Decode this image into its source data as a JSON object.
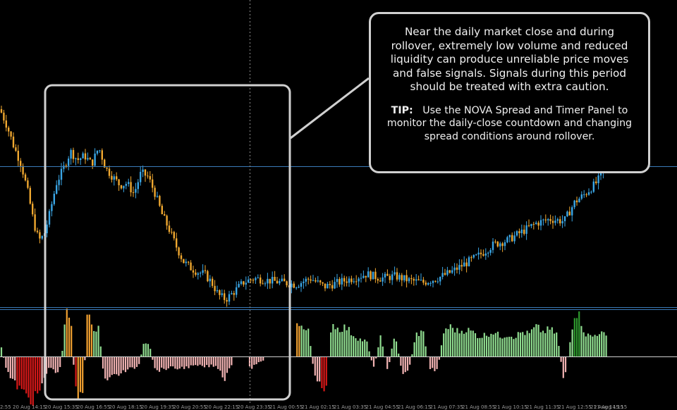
{
  "callout": {
    "text": "Near the daily market close and during rollover, extremely low volume and reduced liquidity can produce unreliable price moves and false signals. Signals during this period should be treated with extra caution.",
    "tip_label": "TIP:",
    "tip_text": "Use the NOVA Spread and Timer Panel to monitor the daily-close countdown and changing spread conditions around rollover."
  },
  "colors": {
    "background": "#000000",
    "candle_up": "#3aa6e6",
    "candle_down": "#f0a830",
    "hist_pos": "#8fdc8f",
    "hist_pos_strong": "#2e9a2e",
    "hist_neg": "#f2b3b3",
    "hist_neg_strong": "#d81818",
    "hist_orange": "#f0a030",
    "guide_line": "#3a7ab8",
    "highlight_box": "#d0d0d0"
  },
  "chart_data": [
    {
      "type": "candlestick",
      "title": "",
      "x_tick_labels": [
        "2:55",
        "20 Aug 14:15",
        "20 Aug 15:35",
        "20 Aug 16:55",
        "20 Aug 18:15",
        "20 Aug 19:35",
        "20 Aug 20:55",
        "20 Aug 22:15",
        "20 Aug 23:35",
        "21 Aug 00:55",
        "21 Aug 02:15",
        "21 Aug 03:35",
        "21 Aug 04:55",
        "21 Aug 06:15",
        "21 Aug 07:35",
        "21 Aug 08:55",
        "21 Aug 10:15",
        "21 Aug 11:35",
        "21 Aug 12:55",
        "21 Aug 14:15",
        "21 Aug 15:15"
      ],
      "y_range": [
        0,
        100
      ],
      "series_shape": [
        [
          0,
          90
        ],
        [
          10,
          82
        ],
        [
          20,
          72
        ],
        [
          30,
          64
        ],
        [
          40,
          50
        ],
        [
          48,
          36
        ],
        [
          55,
          28
        ],
        [
          62,
          30
        ],
        [
          70,
          40
        ],
        [
          80,
          55
        ],
        [
          90,
          62
        ],
        [
          100,
          70
        ],
        [
          110,
          66
        ],
        [
          120,
          68
        ],
        [
          130,
          64
        ],
        [
          140,
          72
        ],
        [
          150,
          62
        ],
        [
          160,
          58
        ],
        [
          170,
          54
        ],
        [
          180,
          55
        ],
        [
          190,
          50
        ],
        [
          200,
          60
        ],
        [
          210,
          58
        ],
        [
          220,
          50
        ],
        [
          230,
          40
        ],
        [
          240,
          33
        ],
        [
          250,
          25
        ],
        [
          260,
          18
        ],
        [
          270,
          15
        ],
        [
          280,
          13
        ],
        [
          290,
          12
        ],
        [
          300,
          8
        ],
        [
          310,
          2
        ],
        [
          320,
          0
        ],
        [
          330,
          3
        ],
        [
          345,
          8
        ],
        [
          360,
          10
        ],
        [
          380,
          9
        ],
        [
          400,
          8
        ],
        [
          420,
          7
        ],
        [
          440,
          10
        ],
        [
          460,
          6
        ],
        [
          480,
          8
        ],
        [
          500,
          10
        ],
        [
          520,
          12
        ],
        [
          540,
          10
        ],
        [
          560,
          11
        ],
        [
          580,
          9
        ],
        [
          600,
          8
        ],
        [
          620,
          10
        ],
        [
          640,
          13
        ],
        [
          660,
          17
        ],
        [
          680,
          21
        ],
        [
          700,
          26
        ],
        [
          720,
          28
        ],
        [
          740,
          32
        ],
        [
          760,
          36
        ],
        [
          780,
          38
        ],
        [
          800,
          37
        ],
        [
          815,
          46
        ],
        [
          830,
          50
        ],
        [
          845,
          55
        ],
        [
          860,
          62
        ]
      ]
    },
    {
      "type": "bar",
      "title": "",
      "y_range": [
        -1,
        1
      ],
      "series_shape": [
        [
          0,
          0.3
        ],
        [
          8,
          -0.2
        ],
        [
          14,
          -0.45
        ],
        [
          22,
          -0.6
        ],
        [
          30,
          -0.72
        ],
        [
          38,
          -0.85
        ],
        [
          46,
          -0.95
        ],
        [
          54,
          -0.8
        ],
        [
          62,
          -0.55
        ],
        [
          70,
          -0.2
        ],
        [
          78,
          -0.35
        ],
        [
          86,
          -0.25
        ],
        [
          94,
          0.95
        ],
        [
          100,
          0.9
        ],
        [
          106,
          -0.6
        ],
        [
          112,
          -0.95
        ],
        [
          118,
          -0.7
        ],
        [
          124,
          0.85
        ],
        [
          132,
          0.6
        ],
        [
          140,
          0.55
        ],
        [
          148,
          -0.5
        ],
        [
          156,
          -0.45
        ],
        [
          164,
          -0.4
        ],
        [
          172,
          -0.35
        ],
        [
          180,
          -0.3
        ],
        [
          188,
          -0.25
        ],
        [
          196,
          -0.22
        ],
        [
          204,
          0.25
        ],
        [
          212,
          0.22
        ],
        [
          220,
          -0.3
        ],
        [
          230,
          -0.28
        ],
        [
          240,
          -0.24
        ],
        [
          250,
          -0.26
        ],
        [
          260,
          -0.24
        ],
        [
          270,
          -0.22
        ],
        [
          280,
          -0.2
        ],
        [
          290,
          -0.22
        ],
        [
          300,
          -0.2
        ],
        [
          310,
          -0.24
        ],
        [
          318,
          -0.5
        ],
        [
          326,
          -0.2
        ],
        [
          356,
          -0.25
        ],
        [
          364,
          -0.15
        ],
        [
          372,
          -0.12
        ],
        [
          422,
          0.75
        ],
        [
          430,
          0.55
        ],
        [
          438,
          0.5
        ],
        [
          446,
          -0.45
        ],
        [
          454,
          -0.65
        ],
        [
          462,
          -0.7
        ],
        [
          470,
          0.7
        ],
        [
          480,
          0.55
        ],
        [
          490,
          0.6
        ],
        [
          500,
          0.45
        ],
        [
          510,
          0.35
        ],
        [
          520,
          0.3
        ],
        [
          530,
          -0.25
        ],
        [
          540,
          0.4
        ],
        [
          550,
          -0.3
        ],
        [
          560,
          0.5
        ],
        [
          570,
          -0.35
        ],
        [
          580,
          -0.28
        ],
        [
          590,
          0.45
        ],
        [
          600,
          0.5
        ],
        [
          610,
          -0.25
        ],
        [
          620,
          -0.3
        ],
        [
          630,
          0.55
        ],
        [
          640,
          0.6
        ],
        [
          650,
          0.5
        ],
        [
          660,
          0.55
        ],
        [
          670,
          0.5
        ],
        [
          680,
          0.4
        ],
        [
          690,
          0.45
        ],
        [
          700,
          0.5
        ],
        [
          710,
          0.4
        ],
        [
          720,
          0.45
        ],
        [
          730,
          0.4
        ],
        [
          740,
          0.5
        ],
        [
          750,
          0.45
        ],
        [
          760,
          0.6
        ],
        [
          770,
          0.5
        ],
        [
          780,
          0.55
        ],
        [
          790,
          0.45
        ],
        [
          800,
          -0.55
        ],
        [
          810,
          0.5
        ],
        [
          816,
          0.95
        ],
        [
          822,
          0.8
        ],
        [
          830,
          0.45
        ],
        [
          840,
          0.4
        ],
        [
          850,
          0.5
        ],
        [
          860,
          0.4
        ]
      ]
    }
  ]
}
